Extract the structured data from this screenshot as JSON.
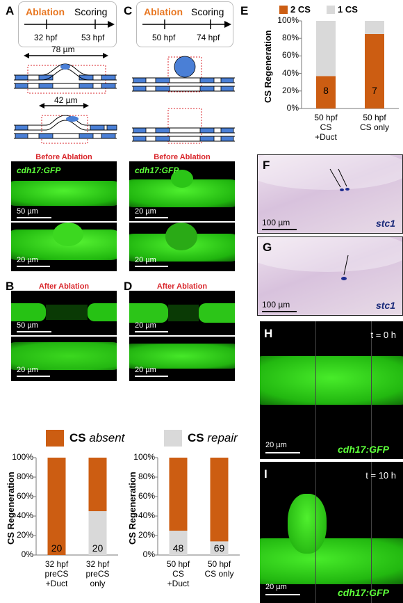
{
  "panels": {
    "A": "A",
    "B": "B",
    "C": "C",
    "D": "D",
    "E": "E",
    "F": "F",
    "G": "G",
    "H": "H",
    "I": "I"
  },
  "timeline_A": {
    "ablation": "Ablation",
    "scoring": "Scoring",
    "t1": "32 hpf",
    "t2": "53 hpf"
  },
  "timeline_C": {
    "ablation": "Ablation",
    "scoring": "Scoring",
    "t1": "50 hpf",
    "t2": "74 hpf"
  },
  "schematic_A": {
    "width_top": "78 µm",
    "width_bottom": "42 µm"
  },
  "labels": {
    "before_ablation": "Before Ablation",
    "after_ablation": "After Ablation",
    "gfp": "cdh17:GFP",
    "stc1": "stc1"
  },
  "scalebars": {
    "A1": "50 µm",
    "A2": "20 µm",
    "A3": "50 µm",
    "A4": "20 µm",
    "C1": "20 µm",
    "C2": "20 µm",
    "C3": "20 µm",
    "C4": "20 µm",
    "F": "100 µm",
    "G": "100 µm",
    "H": "20 µm",
    "I": "20 µm"
  },
  "timestamps": {
    "H": "t = 0 h",
    "I": "t = 10 h"
  },
  "legend_BD": {
    "absent_bold": "CS",
    "absent": "absent",
    "repair_bold": "CS",
    "repair": "repair"
  },
  "colors": {
    "orange": "#cc5d12",
    "gray": "#d9d9d9",
    "ablation": "#e87722",
    "red_head": "#d9262b",
    "gfp": "#5dff3a"
  },
  "chart_data": [
    {
      "panel": "B",
      "type": "bar",
      "stacked": true,
      "ylabel": "CS Regeneration",
      "yticks": [
        "0%",
        "20%",
        "40%",
        "60%",
        "80%",
        "100%"
      ],
      "ylim": [
        0,
        100
      ],
      "categories": [
        "32 hpf\npreCS\n+Duct",
        "32 hpf\npreCS\nonly"
      ],
      "series": [
        {
          "name": "CS absent",
          "values": [
            100,
            55
          ]
        },
        {
          "name": "CS repair",
          "values": [
            0,
            45
          ]
        }
      ],
      "n_labels": [
        "20",
        "20"
      ]
    },
    {
      "panel": "D",
      "type": "bar",
      "stacked": true,
      "ylabel": "CS Regeneration",
      "yticks": [
        "0%",
        "20%",
        "40%",
        "60%",
        "80%",
        "100%"
      ],
      "ylim": [
        0,
        100
      ],
      "categories": [
        "50 hpf\nCS\n+Duct",
        "50 hpf\nCS only"
      ],
      "series": [
        {
          "name": "CS absent",
          "values": [
            75,
            86
          ]
        },
        {
          "name": "CS repair",
          "values": [
            25,
            14
          ]
        }
      ],
      "n_labels": [
        "48",
        "69"
      ]
    },
    {
      "panel": "E",
      "type": "bar",
      "stacked": true,
      "ylabel": "CS Regeneration",
      "yticks": [
        "0%",
        "20%",
        "40%",
        "60%",
        "80%",
        "100%"
      ],
      "ylim": [
        0,
        100
      ],
      "legend": [
        "2 CS",
        "1 CS"
      ],
      "categories": [
        "50 hpf\nCS\n+Duct",
        "50 hpf\nCS only"
      ],
      "series": [
        {
          "name": "2 CS",
          "values": [
            37,
            85
          ]
        },
        {
          "name": "1 CS",
          "values": [
            63,
            15
          ]
        }
      ],
      "n_labels": [
        "8",
        "7"
      ]
    }
  ]
}
